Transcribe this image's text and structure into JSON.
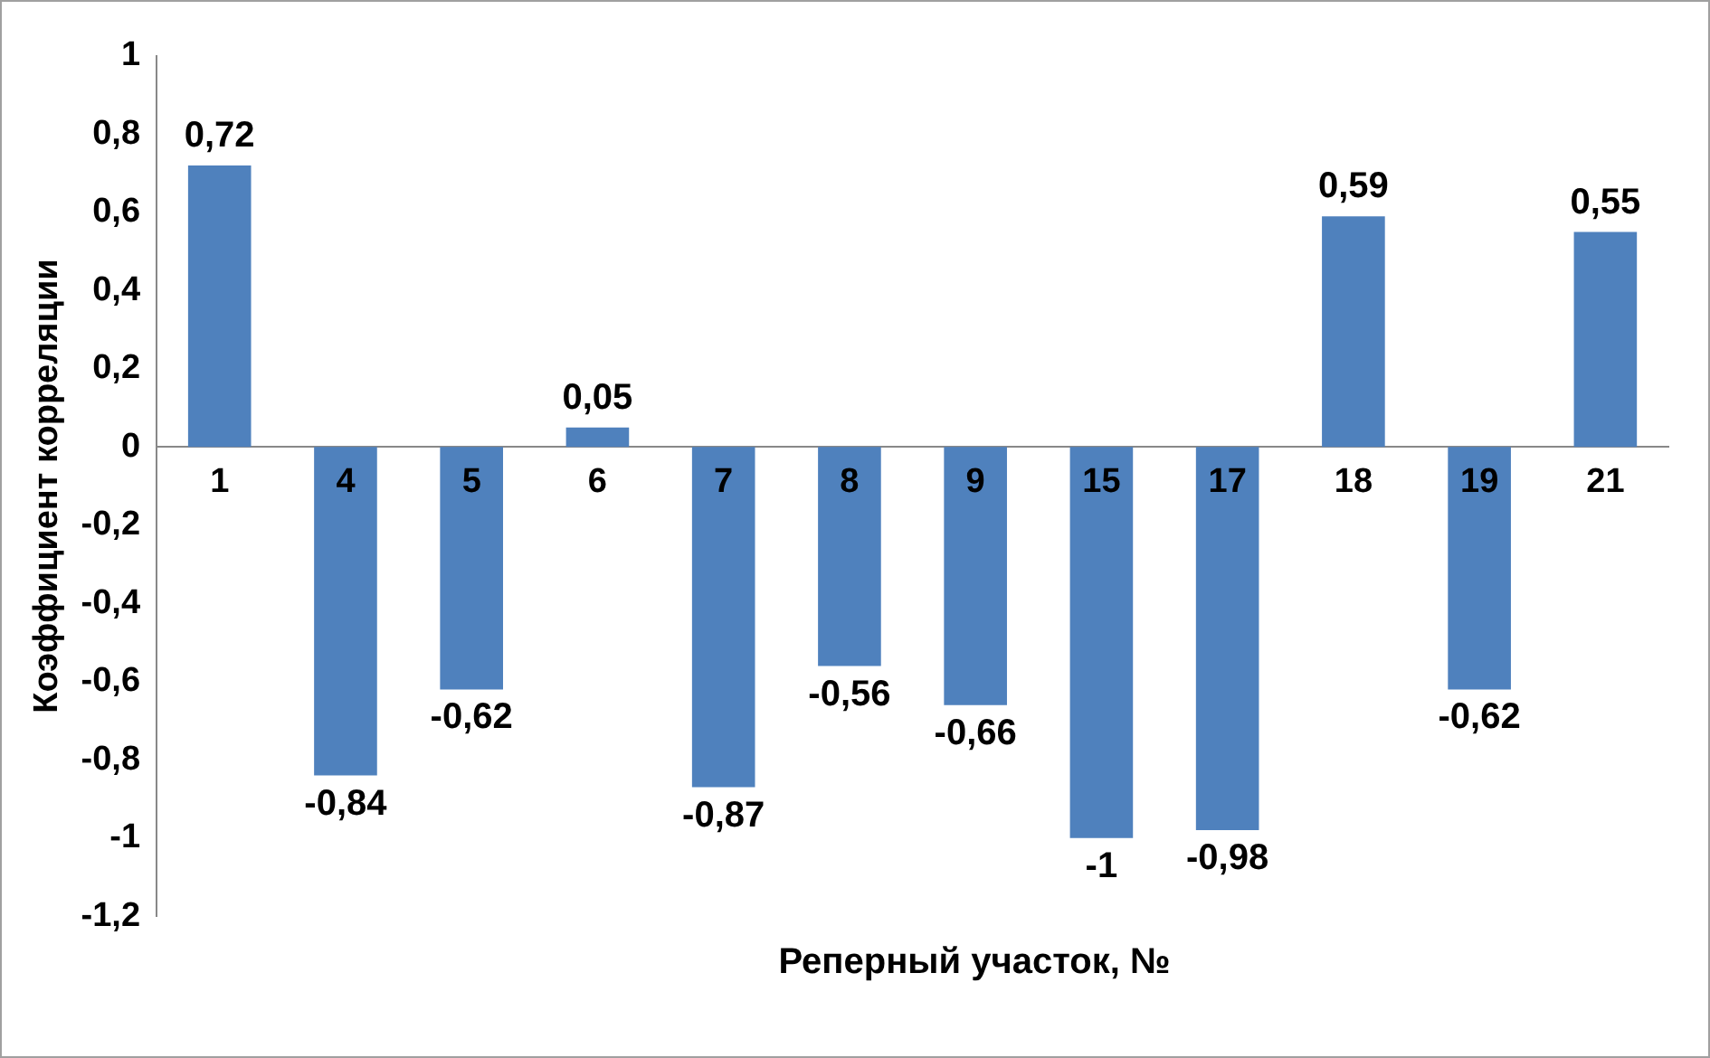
{
  "chart_data": {
    "type": "bar",
    "xlabel": "Реперный участок, №",
    "ylabel": "Коэффициент корреляции",
    "categories": [
      "1",
      "4",
      "5",
      "6",
      "7",
      "8",
      "9",
      "15",
      "17",
      "18",
      "19",
      "21"
    ],
    "values": [
      0.72,
      -0.84,
      -0.62,
      0.05,
      -0.87,
      -0.56,
      -0.66,
      -1,
      -0.98,
      0.59,
      -0.62,
      0.55
    ],
    "value_labels": [
      "0,72",
      "-0,84",
      "-0,62",
      "0,05",
      "-0,87",
      "-0,56",
      "-0,66",
      "-1",
      "-0,98",
      "0,59",
      "-0,62",
      "0,55"
    ],
    "color": "#4f81bd",
    "ylim": [
      -1.2,
      1
    ],
    "yticks": [
      {
        "value": -1.2,
        "label": "-1,2"
      },
      {
        "value": -1,
        "label": "-1"
      },
      {
        "value": -0.8,
        "label": "-0,8"
      },
      {
        "value": -0.6,
        "label": "-0,6"
      },
      {
        "value": -0.4,
        "label": "-0,4"
      },
      {
        "value": -0.2,
        "label": "-0,2"
      },
      0,
      {
        "value": 0.2,
        "label": "0,2"
      },
      {
        "value": 0.4,
        "label": "0,4"
      },
      {
        "value": 0.6,
        "label": "0,6"
      },
      {
        "value": 0.8,
        "label": "0,8"
      },
      1
    ],
    "grid": false,
    "legend": false
  }
}
